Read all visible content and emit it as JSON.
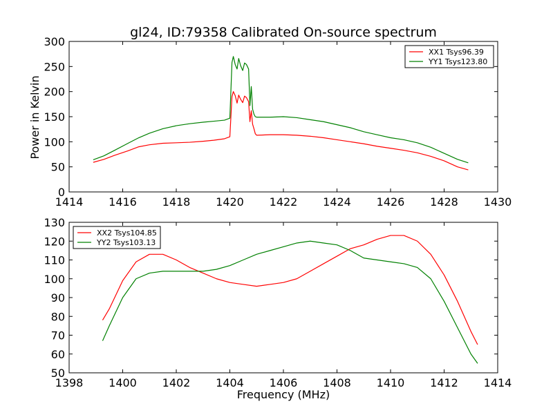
{
  "figure": {
    "title": "gl24, ID:79358 Calibrated On-source spectrum",
    "ylabel": "Power in Kelvin",
    "xlabel": "Frequency (MHz)"
  },
  "chart_data": [
    {
      "type": "line",
      "title": "gl24, ID:79358 Calibrated On-source spectrum",
      "xlabel": "",
      "ylabel": "Power in Kelvin",
      "xlim": [
        1414,
        1430
      ],
      "ylim": [
        0,
        300
      ],
      "xticks": [
        1414,
        1416,
        1418,
        1420,
        1422,
        1424,
        1426,
        1428,
        1430
      ],
      "yticks": [
        0,
        50,
        100,
        150,
        200,
        250,
        300
      ],
      "grid": false,
      "legend": "top-right",
      "series": [
        {
          "name": "XX1 Tsys96.39",
          "color": "#ff0000",
          "points": [
            [
              1414.9,
              59
            ],
            [
              1415.3,
              65
            ],
            [
              1415.7,
              73
            ],
            [
              1416.2,
              82
            ],
            [
              1416.6,
              90
            ],
            [
              1417.0,
              94
            ],
            [
              1417.5,
              97
            ],
            [
              1418.0,
              98
            ],
            [
              1418.5,
              99
            ],
            [
              1419.0,
              101
            ],
            [
              1419.4,
              103
            ],
            [
              1419.8,
              106
            ],
            [
              1420.0,
              110
            ],
            [
              1420.08,
              190
            ],
            [
              1420.13,
              200
            ],
            [
              1420.2,
              192
            ],
            [
              1420.27,
              177
            ],
            [
              1420.33,
              193
            ],
            [
              1420.4,
              185
            ],
            [
              1420.48,
              178
            ],
            [
              1420.55,
              191
            ],
            [
              1420.62,
              188
            ],
            [
              1420.7,
              180
            ],
            [
              1420.75,
              140
            ],
            [
              1420.8,
              162
            ],
            [
              1420.85,
              135
            ],
            [
              1420.9,
              126
            ],
            [
              1420.95,
              116
            ],
            [
              1421.0,
              113
            ],
            [
              1421.5,
              114
            ],
            [
              1422.0,
              114
            ],
            [
              1422.5,
              113
            ],
            [
              1423.0,
              111
            ],
            [
              1423.5,
              108
            ],
            [
              1424.0,
              104
            ],
            [
              1424.5,
              100
            ],
            [
              1425.0,
              96
            ],
            [
              1425.5,
              91
            ],
            [
              1426.0,
              87
            ],
            [
              1426.5,
              83
            ],
            [
              1427.0,
              78
            ],
            [
              1427.5,
              71
            ],
            [
              1428.0,
              62
            ],
            [
              1428.5,
              50
            ],
            [
              1428.9,
              44
            ]
          ]
        },
        {
          "name": "YY1 Tsys123.80",
          "color": "#008000",
          "points": [
            [
              1414.9,
              64
            ],
            [
              1415.3,
              72
            ],
            [
              1415.7,
              83
            ],
            [
              1416.2,
              97
            ],
            [
              1416.6,
              108
            ],
            [
              1417.0,
              117
            ],
            [
              1417.5,
              126
            ],
            [
              1418.0,
              132
            ],
            [
              1418.5,
              136
            ],
            [
              1419.0,
              139
            ],
            [
              1419.4,
              141
            ],
            [
              1419.8,
              143
            ],
            [
              1420.0,
              147
            ],
            [
              1420.08,
              258
            ],
            [
              1420.13,
              270
            ],
            [
              1420.2,
              254
            ],
            [
              1420.27,
              245
            ],
            [
              1420.33,
              266
            ],
            [
              1420.4,
              252
            ],
            [
              1420.48,
              242
            ],
            [
              1420.55,
              257
            ],
            [
              1420.62,
              254
            ],
            [
              1420.7,
              245
            ],
            [
              1420.75,
              172
            ],
            [
              1420.8,
              210
            ],
            [
              1420.85,
              165
            ],
            [
              1420.9,
              155
            ],
            [
              1420.95,
              150
            ],
            [
              1421.0,
              149
            ],
            [
              1421.5,
              149
            ],
            [
              1422.0,
              150
            ],
            [
              1422.5,
              148
            ],
            [
              1423.0,
              144
            ],
            [
              1423.5,
              140
            ],
            [
              1424.0,
              134
            ],
            [
              1424.5,
              128
            ],
            [
              1425.0,
              120
            ],
            [
              1425.5,
              114
            ],
            [
              1426.0,
              108
            ],
            [
              1426.5,
              104
            ],
            [
              1427.0,
              98
            ],
            [
              1427.5,
              89
            ],
            [
              1428.0,
              77
            ],
            [
              1428.5,
              65
            ],
            [
              1428.9,
              58
            ]
          ]
        }
      ]
    },
    {
      "type": "line",
      "title": "",
      "xlabel": "Frequency (MHz)",
      "ylabel": "",
      "xlim": [
        1398,
        1414
      ],
      "ylim": [
        50,
        130
      ],
      "xticks": [
        1398,
        1400,
        1402,
        1404,
        1406,
        1408,
        1410,
        1412,
        1414
      ],
      "yticks": [
        50,
        60,
        70,
        80,
        90,
        100,
        110,
        120,
        130
      ],
      "grid": false,
      "legend": "top-left",
      "series": [
        {
          "name": "XX2 Tsys104.85",
          "color": "#ff0000",
          "points": [
            [
              1399.25,
              78
            ],
            [
              1399.5,
              84
            ],
            [
              1400.0,
              99
            ],
            [
              1400.5,
              109
            ],
            [
              1401.0,
              113
            ],
            [
              1401.5,
              113
            ],
            [
              1402.0,
              110
            ],
            [
              1402.5,
              106
            ],
            [
              1403.0,
              103
            ],
            [
              1403.5,
              100
            ],
            [
              1404.0,
              98
            ],
            [
              1404.5,
              97
            ],
            [
              1405.0,
              96
            ],
            [
              1405.5,
              97
            ],
            [
              1406.0,
              98
            ],
            [
              1406.5,
              100
            ],
            [
              1407.0,
              104
            ],
            [
              1407.5,
              108
            ],
            [
              1408.0,
              112
            ],
            [
              1408.5,
              116
            ],
            [
              1409.0,
              118
            ],
            [
              1409.5,
              121
            ],
            [
              1410.0,
              123
            ],
            [
              1410.5,
              123
            ],
            [
              1411.0,
              120
            ],
            [
              1411.5,
              113
            ],
            [
              1412.0,
              102
            ],
            [
              1412.5,
              88
            ],
            [
              1413.0,
              72
            ],
            [
              1413.25,
              65
            ]
          ]
        },
        {
          "name": "YY2 Tsys103.13",
          "color": "#008000",
          "points": [
            [
              1399.25,
              67
            ],
            [
              1399.5,
              75
            ],
            [
              1400.0,
              90
            ],
            [
              1400.5,
              100
            ],
            [
              1401.0,
              103
            ],
            [
              1401.5,
              104
            ],
            [
              1402.0,
              104
            ],
            [
              1402.5,
              104
            ],
            [
              1403.0,
              104
            ],
            [
              1403.5,
              105
            ],
            [
              1404.0,
              107
            ],
            [
              1404.5,
              110
            ],
            [
              1405.0,
              113
            ],
            [
              1405.5,
              115
            ],
            [
              1406.0,
              117
            ],
            [
              1406.5,
              119
            ],
            [
              1407.0,
              120
            ],
            [
              1407.5,
              119
            ],
            [
              1408.0,
              118
            ],
            [
              1408.5,
              115
            ],
            [
              1409.0,
              111
            ],
            [
              1409.5,
              110
            ],
            [
              1410.0,
              109
            ],
            [
              1410.5,
              108
            ],
            [
              1411.0,
              106
            ],
            [
              1411.5,
              100
            ],
            [
              1412.0,
              88
            ],
            [
              1412.5,
              74
            ],
            [
              1413.0,
              60
            ],
            [
              1413.25,
              55
            ]
          ]
        }
      ]
    }
  ]
}
